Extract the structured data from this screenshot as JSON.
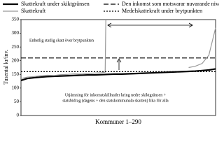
{
  "chart_data": {
    "type": "line",
    "y_label": "Tusental kr/inv.",
    "x_label": "Kommuner 1–290",
    "xlim": [
      1,
      290
    ],
    "ylim": [
      0,
      350
    ],
    "yticks": [
      0,
      50,
      100,
      150,
      200,
      250,
      300,
      350
    ],
    "annotations": [
      "Enhetlig statlig skatt över brytpunkten",
      "Utjämning för inkomstskillnader kring nedre skiktgränsen +",
      "statsbidrag (dagens + den statskommunala skatten) lika för alla"
    ],
    "series": [
      {
        "name": "Skattekraft under skiktgränsen",
        "color": "#000000",
        "style": "solid",
        "width": 2.2,
        "x": [
          1,
          10,
          20,
          30,
          40,
          50,
          60,
          70,
          80,
          90,
          100,
          110,
          120,
          130,
          140,
          150,
          160,
          170,
          180,
          190,
          200,
          210,
          220,
          230,
          240,
          250,
          260,
          270,
          280,
          290
        ],
        "values": [
          128,
          135,
          138,
          140,
          142,
          143,
          144,
          145,
          146,
          147,
          148,
          148,
          149,
          150,
          151,
          151,
          152,
          153,
          154,
          155,
          156,
          157,
          158,
          159,
          160,
          161,
          162,
          164,
          166,
          170
        ]
      },
      {
        "name": "Den inkomst som motsvarar nuvarande nivå",
        "color": "#000000",
        "style": "dashed",
        "width": 1.2,
        "x": [
          1,
          290
        ],
        "values": [
          210,
          210
        ]
      },
      {
        "name": "Skattekraft",
        "color": "#999999",
        "style": "solid",
        "width": 1.2,
        "x": [
          1,
          10,
          20,
          30,
          40,
          50,
          60,
          70,
          80,
          90,
          100,
          110,
          120,
          126,
          127,
          200,
          250,
          260,
          270,
          280,
          290
        ],
        "values": [
          135,
          140,
          142,
          145,
          147,
          146,
          149,
          150,
          152,
          151,
          153,
          155,
          156,
          158,
          350,
          null,
          175,
          180,
          190,
          220,
          320
        ]
      },
      {
        "name": "Medelskattekraft under brytpunkten",
        "color": "#000000",
        "style": "dotted",
        "width": 1.2,
        "x": [
          1,
          290
        ],
        "values": [
          160,
          160
        ]
      }
    ]
  }
}
